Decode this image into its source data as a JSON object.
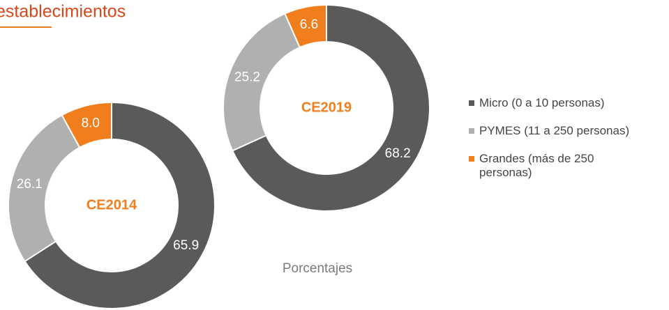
{
  "title": "establecimientos",
  "note": "Porcentajes",
  "chart_data": [
    {
      "type": "pie",
      "center_label": "CE2014",
      "categories": [
        "Micro (0 a 10 personas)",
        "PYMES (11 a 250 personas)",
        "Grandes (más de 250 personas)"
      ],
      "values": [
        65.9,
        26.1,
        8.0
      ],
      "value_labels": [
        "65.9",
        "26.1",
        "8.0"
      ],
      "colors": [
        "#5a5a5a",
        "#b0b0b0",
        "#f07e1c"
      ]
    },
    {
      "type": "pie",
      "center_label": "CE2019",
      "categories": [
        "Micro (0 a 10 personas)",
        "PYMES (11 a 250 personas)",
        "Grandes (más de 250 personas)"
      ],
      "values": [
        68.2,
        25.2,
        6.6
      ],
      "value_labels": [
        "68.2",
        "25.2",
        "6.6"
      ],
      "colors": [
        "#5a5a5a",
        "#b0b0b0",
        "#f07e1c"
      ]
    }
  ]
}
